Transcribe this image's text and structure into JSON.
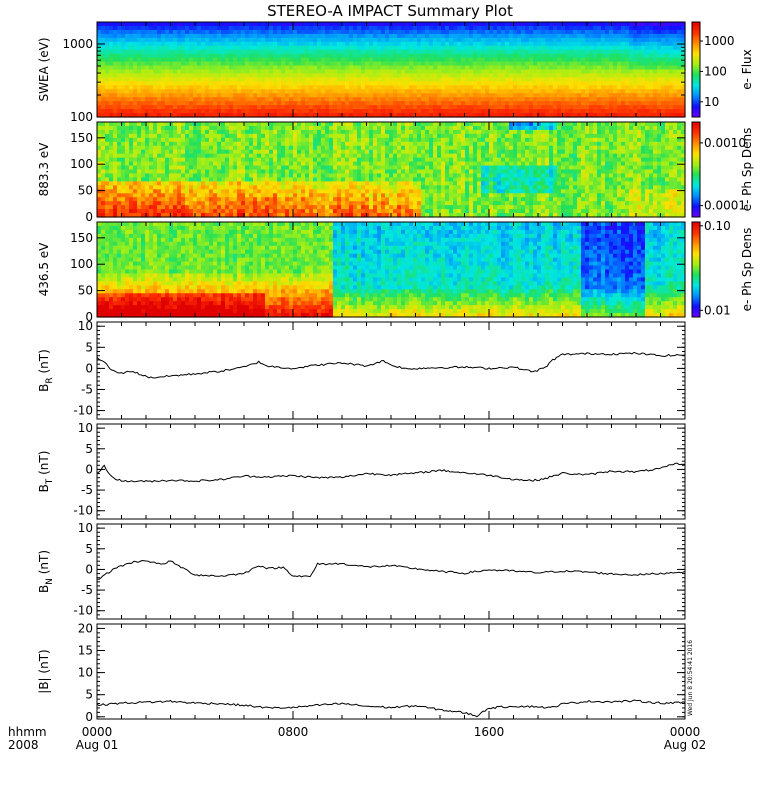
{
  "title": "STEREO-A IMPACT Summary Plot",
  "colors": {
    "background": "#ffffff",
    "axes": "#000000",
    "colormap": [
      "#6a00ff",
      "#1010ff",
      "#0090ff",
      "#00e8e0",
      "#22e05a",
      "#a8ef14",
      "#ffe000",
      "#ff8a00",
      "#ff3000",
      "#e00000"
    ]
  },
  "time_axis": {
    "corner_labels": [
      "hhmm",
      "2008"
    ],
    "ticks": [
      {
        "label": "0000",
        "date": "Aug 01"
      },
      {
        "label": "0800",
        "date": ""
      },
      {
        "label": "1600",
        "date": ""
      },
      {
        "label": "0000",
        "date": "Aug 02"
      }
    ],
    "range_hours": [
      0,
      24
    ]
  },
  "timestamp": "Wed Jun 8 20:54:41 2016",
  "chart_data": [
    {
      "type": "heatmap",
      "ylabel": "SWEA (eV)",
      "scale": "log",
      "ylim": [
        100,
        2000
      ],
      "yticks": [
        "1000",
        "100"
      ],
      "colorbar": {
        "label": "e- Flux",
        "scale": "log",
        "ticks": [
          "1000",
          "100",
          "10"
        ]
      },
      "description_values": {
        "low_energy_level": 0.9,
        "high_energy_level": 0.1
      }
    },
    {
      "type": "heatmap",
      "ylabel": "883.3 eV",
      "ylim": [
        0,
        180
      ],
      "yticks": [
        "150",
        "100",
        "50",
        "0"
      ],
      "colorbar": {
        "label": "e- Ph Sp Dens",
        "scale": "log",
        "ticks": [
          "0.0010",
          "0.0001"
        ]
      }
    },
    {
      "type": "heatmap",
      "ylabel": "436.5 eV",
      "ylim": [
        0,
        180
      ],
      "yticks": [
        "150",
        "100",
        "50",
        "0"
      ],
      "colorbar": {
        "label": "e- Ph Sp Dens",
        "scale": "log",
        "ticks": [
          "0.10",
          "0.01"
        ]
      }
    },
    {
      "type": "line",
      "ylabel": "B",
      "ylabel_sub": "R",
      "ylabel_unit": "(nT)",
      "ylim": [
        -12,
        11
      ],
      "yticks": [
        "10",
        "5",
        "0",
        "-5",
        "-10"
      ],
      "x": [
        0,
        0.3,
        0.6,
        1,
        1.4,
        1.8,
        2.2,
        3,
        4,
        5,
        6,
        6.6,
        7,
        8,
        9,
        10,
        11,
        11.7,
        12,
        12.7,
        13,
        14,
        15,
        16,
        17,
        17.8,
        18.3,
        18.6,
        19,
        20,
        21,
        22,
        23,
        24
      ],
      "y": [
        2.5,
        1.5,
        -0.5,
        -1.2,
        -0.6,
        -1.5,
        -2.2,
        -1.8,
        -1.3,
        -0.7,
        0.3,
        1.5,
        0.5,
        0.0,
        0.8,
        1.3,
        0.6,
        1.8,
        0.8,
        -0.2,
        0.0,
        0.2,
        0.3,
        0.0,
        0.3,
        -0.8,
        0.2,
        2.0,
        3.3,
        3.5,
        3.4,
        3.6,
        3.0,
        3.2
      ]
    },
    {
      "type": "line",
      "ylabel": "B",
      "ylabel_sub": "T",
      "ylabel_unit": "(nT)",
      "ylim": [
        -12,
        11
      ],
      "yticks": [
        "10",
        "5",
        "0",
        "-5",
        "-10"
      ],
      "x": [
        0,
        0.3,
        0.6,
        1,
        2,
        3,
        4,
        5,
        6,
        7,
        8,
        9,
        10,
        11,
        12,
        13,
        14,
        15,
        16,
        17,
        17.8,
        18.3,
        19,
        20,
        21,
        22,
        23,
        23.6,
        24
      ],
      "y": [
        -1.0,
        0.8,
        -1.8,
        -2.8,
        -2.9,
        -2.6,
        -2.8,
        -2.5,
        -1.6,
        -1.8,
        -1.5,
        -2.0,
        -1.9,
        -1.0,
        -1.3,
        -0.9,
        -0.2,
        -0.8,
        -1.4,
        -2.4,
        -2.7,
        -2.2,
        -0.9,
        -1.3,
        -0.4,
        -0.6,
        0.2,
        1.4,
        1.2
      ]
    },
    {
      "type": "line",
      "ylabel": "B",
      "ylabel_sub": "N",
      "ylabel_unit": "(nT)",
      "ylim": [
        -12,
        11
      ],
      "yticks": [
        "10",
        "5",
        "0",
        "-5",
        "-10"
      ],
      "x": [
        0,
        0.4,
        0.8,
        1.5,
        2,
        2.6,
        3,
        3.6,
        4,
        5,
        6,
        6.6,
        7,
        7.6,
        8,
        8.7,
        9,
        10,
        11,
        12,
        13,
        14,
        15,
        16,
        17,
        18,
        19,
        20,
        21,
        22,
        23,
        24
      ],
      "y": [
        -2.5,
        -1.0,
        0.5,
        1.8,
        2.2,
        1.2,
        2.0,
        0.0,
        -1.3,
        -1.6,
        -1.0,
        1.0,
        0.2,
        0.5,
        -1.5,
        -1.8,
        1.3,
        1.4,
        0.6,
        0.9,
        0.2,
        -0.5,
        -0.9,
        -0.1,
        -0.4,
        -0.8,
        -0.4,
        -0.6,
        -1.1,
        -1.3,
        -1.0,
        -0.5
      ]
    },
    {
      "type": "line",
      "ylabel": "|B|",
      "ylabel_sub": "",
      "ylabel_unit": "(nT)",
      "ylim": [
        -0.5,
        21
      ],
      "yticks": [
        "20",
        "15",
        "10",
        "5",
        "0"
      ],
      "x": [
        0,
        0.5,
        1,
        2,
        3,
        4,
        5,
        6,
        7,
        8,
        9,
        10,
        11,
        12,
        13,
        14,
        15,
        15.5,
        16,
        17,
        18,
        18.5,
        19,
        20,
        21,
        22,
        23,
        24
      ],
      "y": [
        2.6,
        2.9,
        3.1,
        3.3,
        3.5,
        3.1,
        3.0,
        2.6,
        2.0,
        2.1,
        2.6,
        3.0,
        2.4,
        2.1,
        2.5,
        1.6,
        0.9,
        0.2,
        2.0,
        2.4,
        2.3,
        2.0,
        2.9,
        3.5,
        3.4,
        3.6,
        3.1,
        3.2
      ]
    }
  ]
}
